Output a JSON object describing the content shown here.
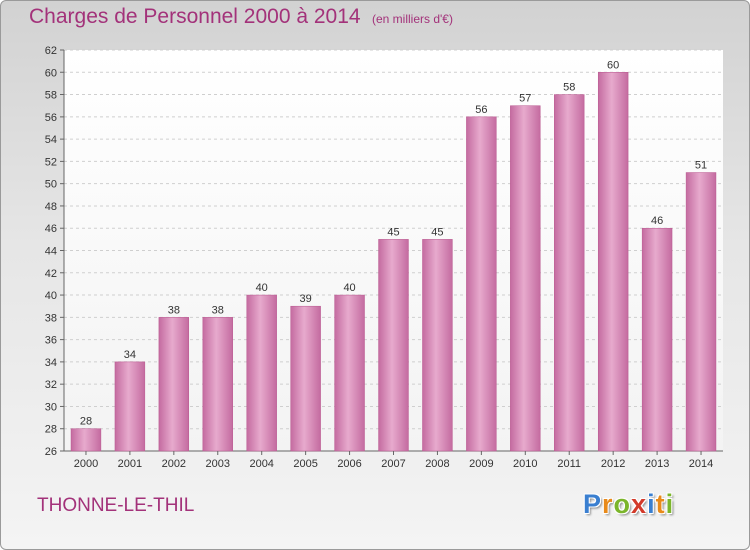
{
  "chart_data": {
    "type": "bar",
    "title": "Charges de Personnel 2000 à 2014",
    "subtitle": "(en milliers d'€)",
    "categories": [
      "2000",
      "2001",
      "2002",
      "2003",
      "2004",
      "2005",
      "2006",
      "2007",
      "2008",
      "2009",
      "2010",
      "2011",
      "2012",
      "2013",
      "2014"
    ],
    "values": [
      28,
      34,
      38,
      38,
      40,
      39,
      40,
      45,
      45,
      56,
      57,
      58,
      60,
      46,
      51
    ],
    "ylim": [
      26,
      62
    ],
    "ytick_step": 2,
    "grid": true,
    "bar_color": "#c46ba0",
    "bar_color_light": "#e7aacd",
    "legend": "none"
  },
  "footer": {
    "place": "THONNE-LE-THIL",
    "logo": [
      "P",
      "r",
      "o",
      "x",
      "i",
      "t",
      "i"
    ],
    "logo_colors": [
      "#3a7fd0",
      "#e88a1a",
      "#7bb52b",
      "#d33a2a",
      "#3a7fd0",
      "#e88a1a",
      "#7bb52b"
    ]
  }
}
